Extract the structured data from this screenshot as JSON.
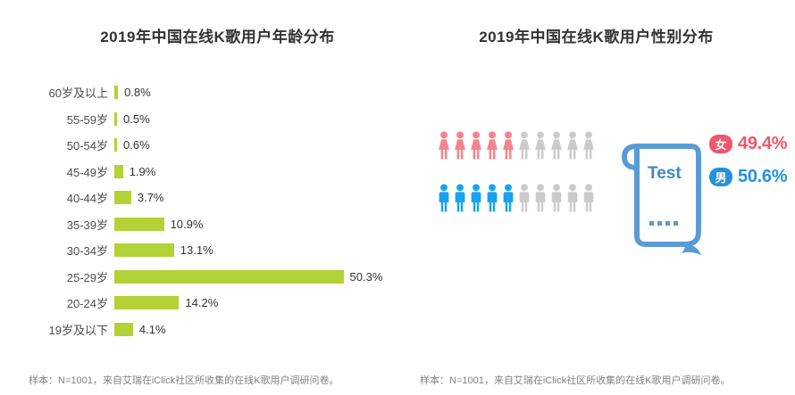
{
  "age_chart": {
    "title": "2019年中国在线K歌用户年龄分布",
    "bar_color": "#b2d235",
    "categories": [
      "60岁及以上",
      "55-59岁",
      "50-54岁",
      "45-49岁",
      "40-44岁",
      "35-39岁",
      "30-34岁",
      "25-29岁",
      "20-24岁",
      "19岁及以下"
    ],
    "values": [
      0.8,
      0.5,
      0.6,
      1.9,
      3.7,
      10.9,
      13.1,
      50.3,
      14.2,
      4.1
    ],
    "value_labels": [
      "0.8%",
      "0.5%",
      "0.6%",
      "1.9%",
      "3.7%",
      "10.9%",
      "13.1%",
      "50.3%",
      "14.2%",
      "4.1%"
    ],
    "footnote": "样本：N=1001，来自艾瑞在iClick社区所收集的在线K歌用户调研问卷。"
  },
  "gender_chart": {
    "title": "2019年中国在线K歌用户性别分布",
    "document_label": "Test",
    "doc_color": "#5b9bd5",
    "doc_text_color": "#3f87cc",
    "icons_per_row": 10,
    "icon_gray": "#cbcbcb",
    "female": {
      "label": "女",
      "value": "49.4%",
      "pct": 49.4,
      "icon_color": "#f5858d",
      "accent": "#f2566b",
      "icon": "female-person-icon"
    },
    "male": {
      "label": "男",
      "value": "50.6%",
      "pct": 50.6,
      "icon_color": "#19a2f1",
      "accent": "#2491dd",
      "icon": "male-person-icon"
    },
    "footnote": "样本：N=1001，来自艾瑞在iClick社区所收集的在线K歌用户调研问卷。"
  },
  "chart_data": [
    {
      "type": "bar",
      "orientation": "horizontal",
      "title": "2019年中国在线K歌用户年龄分布",
      "categories": [
        "60岁及以上",
        "55-59岁",
        "50-54岁",
        "45-49岁",
        "40-44岁",
        "35-39岁",
        "30-34岁",
        "25-29岁",
        "20-24岁",
        "19岁及以下"
      ],
      "values": [
        0.8,
        0.5,
        0.6,
        1.9,
        3.7,
        10.9,
        13.1,
        50.3,
        14.2,
        4.1
      ],
      "unit": "%",
      "xlim": [
        0,
        55
      ],
      "grid": false,
      "bar_color": "#b2d235",
      "footnote": "样本：N=1001，来自艾瑞在iClick社区所收集的在线K歌用户调研问卷。"
    },
    {
      "type": "pictogram",
      "title": "2019年中国在线K歌用户性别分布",
      "categories": [
        "女",
        "男"
      ],
      "values": [
        49.4,
        50.6
      ],
      "unit": "%",
      "icons_per_category": 10,
      "colors": [
        "#f2566b",
        "#2491dd"
      ],
      "footnote": "样本：N=1001，来自艾瑞在iClick社区所收集的在线K歌用户调研问卷。"
    }
  ]
}
